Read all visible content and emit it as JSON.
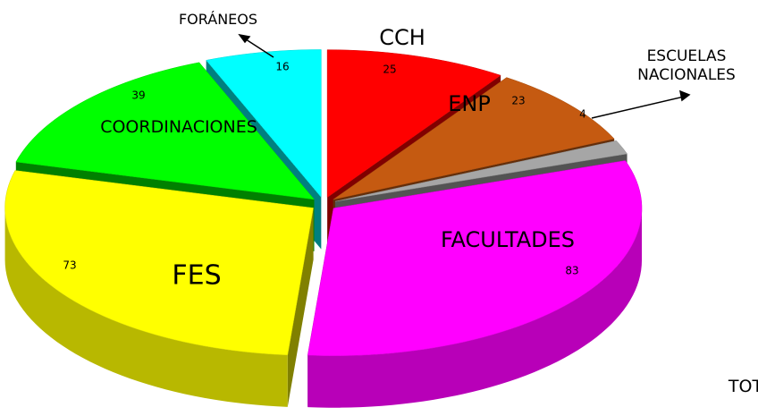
{
  "chart_data": {
    "type": "pie3d",
    "categories": [
      "CCH",
      "ENP",
      "ESCUELAS NACIONALES",
      "FACULTADES",
      "FES",
      "COORDINACIONES",
      "FORÁNEOS"
    ],
    "values": [
      25,
      23,
      4,
      83,
      73,
      39,
      16
    ],
    "colors": [
      "#ff0000",
      "#c55a11",
      "#a6a6a6",
      "#ff00ff",
      "#ffff00",
      "#00ff00",
      "#00ffff"
    ],
    "annotations": [
      "TOT"
    ]
  }
}
